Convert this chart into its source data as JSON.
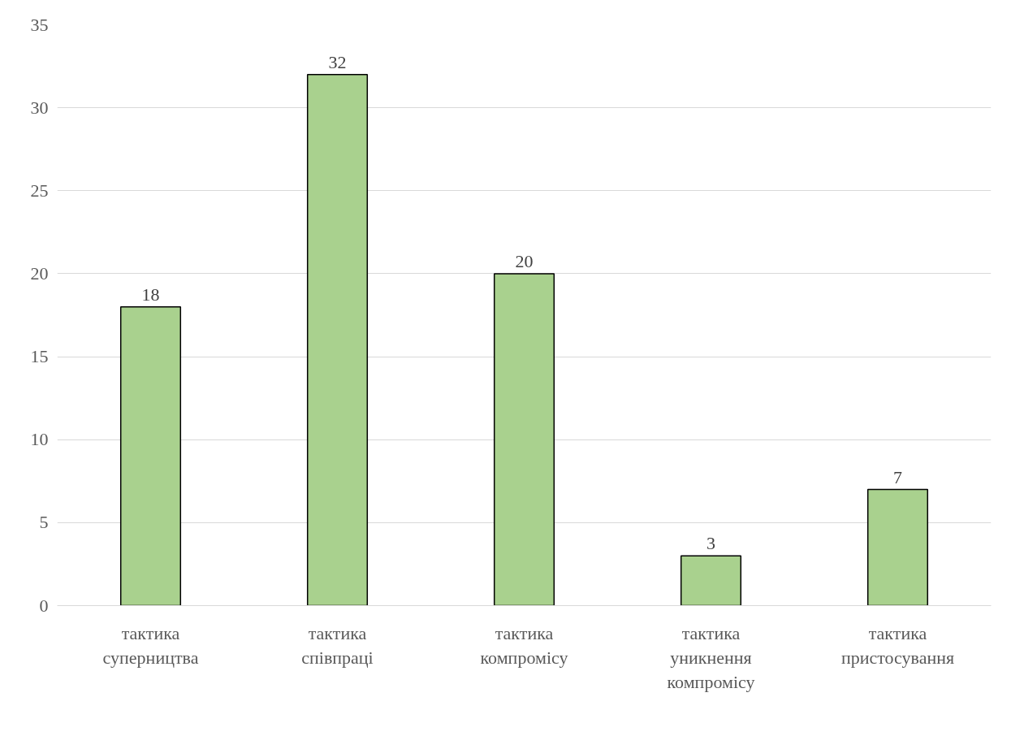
{
  "chart_data": {
    "type": "bar",
    "categories": [
      "тактика\nсуперництва",
      "тактика\nспівпраці",
      "тактика\nкомпромісу",
      "тактика\nуникнення\nкомпромісу",
      "тактика\nпристосування"
    ],
    "values": [
      18,
      32,
      20,
      3,
      7
    ],
    "color": "#a9d18e",
    "ylim": [
      0,
      35
    ],
    "yticks": [
      0,
      5,
      10,
      15,
      20,
      25,
      30,
      35
    ],
    "grid": "y",
    "data_labels": true
  }
}
